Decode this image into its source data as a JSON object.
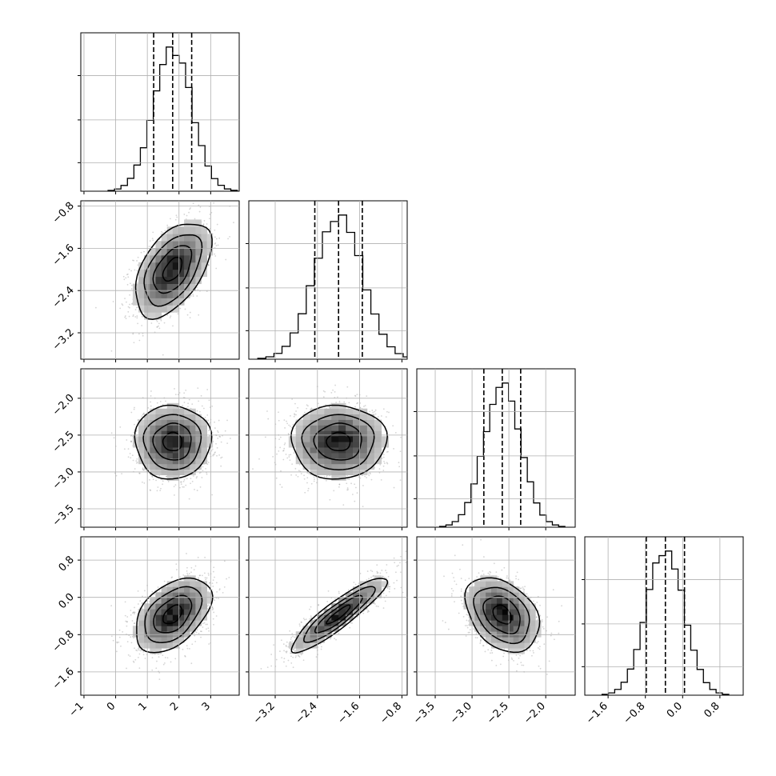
{
  "chart_data": {
    "type": "corner",
    "grid": true,
    "parameters": [
      {
        "range": [
          -1.1,
          3.9
        ],
        "ticks": [
          -1,
          0,
          1,
          2,
          3
        ],
        "tick_labels": [
          "−1",
          "0",
          "1",
          "2",
          "3"
        ],
        "mean": 1.8,
        "sd": 0.6,
        "quantiles": [
          1.2,
          1.8,
          2.4
        ]
      },
      {
        "range": [
          -3.7,
          -0.7
        ],
        "ticks": [
          -3.2,
          -2.4,
          -1.6,
          -0.8
        ],
        "tick_labels": [
          "−3.2",
          "−2.4",
          "−1.6",
          "−0.8"
        ],
        "mean": -2.0,
        "sd": 0.45,
        "quantiles": [
          -2.45,
          -2.0,
          -1.55
        ]
      },
      {
        "range": [
          -3.75,
          -1.6
        ],
        "ticks": [
          -3.5,
          -3.0,
          -2.5,
          -2.0
        ],
        "tick_labels": [
          "−3.5",
          "−3.0",
          "−2.5",
          "−2.0"
        ],
        "mean": -2.59,
        "sd": 0.25,
        "quantiles": [
          -2.84,
          -2.59,
          -2.34
        ]
      },
      {
        "range": [
          -2.1,
          1.3
        ],
        "ticks": [
          -1.6,
          -0.8,
          0.0,
          0.8
        ],
        "tick_labels": [
          "−1.6",
          "−0.8",
          "0.0",
          "0.8"
        ],
        "mean": -0.37,
        "sd": 0.4,
        "quantiles": [
          -0.78,
          -0.37,
          0.04
        ]
      }
    ],
    "correlations": [
      [
        1.0,
        0.5,
        0.0,
        0.45
      ],
      [
        0.5,
        1.0,
        0.0,
        0.9
      ],
      [
        0.0,
        0.0,
        1.0,
        -0.35
      ],
      [
        0.45,
        0.9,
        -0.35,
        1.0
      ]
    ],
    "contour_levels_sigma": [
      0.5,
      1.0,
      1.5,
      2.0
    ],
    "samples_per_panel": 1400,
    "histogram_bins": 20
  }
}
